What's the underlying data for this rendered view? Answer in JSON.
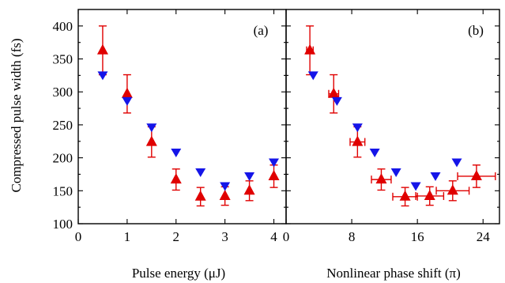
{
  "colors": {
    "measured": "#e00000",
    "simulated": "#1515e8",
    "axes": "#000000"
  },
  "chart_data": [
    {
      "type": "scatter",
      "panel_label": "(a)",
      "xlabel": "Pulse energy (μJ)",
      "ylabel": "Compressed pulse width (fs)",
      "xlim": [
        0,
        4.25
      ],
      "ylim": [
        100,
        425
      ],
      "xticks": [
        0,
        1,
        2,
        3,
        4
      ],
      "xtick_labels": [
        "0",
        "1",
        "2",
        "3",
        "4"
      ],
      "yticks": [
        100,
        150,
        200,
        250,
        300,
        350,
        400
      ],
      "ytick_labels": [
        "100",
        "150",
        "200",
        "250",
        "300",
        "350",
        "400"
      ],
      "series": [
        {
          "marker": "triangle-up",
          "color": "#e00000",
          "points": [
            {
              "x": 0.5,
              "y": 363,
              "yerr": 37
            },
            {
              "x": 1.0,
              "y": 297,
              "yerr": 29
            },
            {
              "x": 1.5,
              "y": 224,
              "yerr": 23
            },
            {
              "x": 2.0,
              "y": 167,
              "yerr": 16
            },
            {
              "x": 2.5,
              "y": 141,
              "yerr": 14
            },
            {
              "x": 3.0,
              "y": 142,
              "yerr": 14
            },
            {
              "x": 3.5,
              "y": 150,
              "yerr": 15
            },
            {
              "x": 4.0,
              "y": 172,
              "yerr": 17
            }
          ]
        },
        {
          "marker": "triangle-down",
          "color": "#1515e8",
          "points": [
            {
              "x": 0.5,
              "y": 325
            },
            {
              "x": 1.0,
              "y": 286
            },
            {
              "x": 1.5,
              "y": 246
            },
            {
              "x": 2.0,
              "y": 208
            },
            {
              "x": 2.5,
              "y": 178
            },
            {
              "x": 3.0,
              "y": 157
            },
            {
              "x": 3.5,
              "y": 172
            },
            {
              "x": 4.0,
              "y": 193
            }
          ]
        }
      ]
    },
    {
      "type": "scatter",
      "panel_label": "(b)",
      "xlabel": "Nonlinear phase shift (π)",
      "ylabel": "",
      "xlim": [
        0,
        26
      ],
      "ylim": [
        100,
        425
      ],
      "xticks": [
        0,
        8,
        16,
        24
      ],
      "xtick_labels": [
        "0",
        "8",
        "16",
        "24"
      ],
      "yticks": [
        100,
        150,
        200,
        250,
        300,
        350,
        400
      ],
      "ytick_labels": [],
      "series": [
        {
          "marker": "triangle-up",
          "color": "#e00000",
          "points": [
            {
              "x": 2.9,
              "y": 363,
              "yerr": 37,
              "xerr": 0.4
            },
            {
              "x": 5.8,
              "y": 297,
              "yerr": 29,
              "xerr": 0.6
            },
            {
              "x": 8.7,
              "y": 224,
              "yerr": 23,
              "xerr": 0.9
            },
            {
              "x": 11.6,
              "y": 167,
              "yerr": 16,
              "xerr": 1.2
            },
            {
              "x": 14.5,
              "y": 141,
              "yerr": 14,
              "xerr": 1.5
            },
            {
              "x": 17.5,
              "y": 142,
              "yerr": 14,
              "xerr": 1.7
            },
            {
              "x": 20.3,
              "y": 150,
              "yerr": 15,
              "xerr": 2.0
            },
            {
              "x": 23.2,
              "y": 172,
              "yerr": 17,
              "xerr": 2.3
            }
          ]
        },
        {
          "marker": "triangle-down",
          "color": "#1515e8",
          "points": [
            {
              "x": 3.3,
              "y": 325
            },
            {
              "x": 6.2,
              "y": 286
            },
            {
              "x": 8.7,
              "y": 246
            },
            {
              "x": 10.8,
              "y": 208
            },
            {
              "x": 13.4,
              "y": 178
            },
            {
              "x": 15.8,
              "y": 157
            },
            {
              "x": 18.2,
              "y": 172
            },
            {
              "x": 20.8,
              "y": 193
            }
          ]
        }
      ]
    }
  ]
}
